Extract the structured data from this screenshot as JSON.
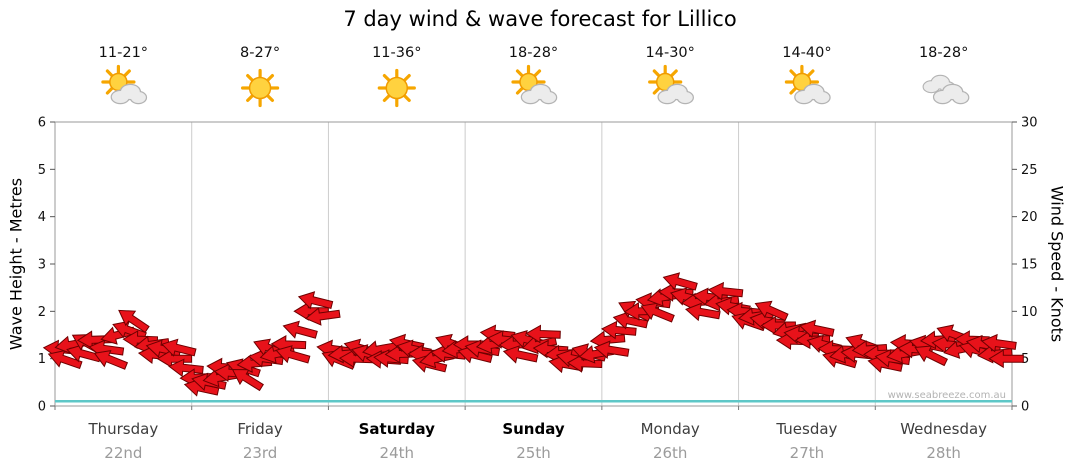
{
  "title": "7 day wind & wave forecast for Lillico",
  "watermark": "www.seabreeze.com.au",
  "chart_data": {
    "type": "scatter",
    "subtype": "wind-direction-arrows",
    "title": "7 day wind & wave forecast for Lillico",
    "left_axis": {
      "label": "Wave Height - Metres",
      "min": 0,
      "max": 6,
      "tick_step": 1
    },
    "right_axis": {
      "label": "Wind Speed - Knots",
      "min": 0,
      "max": 30,
      "tick_step": 5
    },
    "days": [
      {
        "name": "Thursday",
        "date": "22nd",
        "temp": "11-21°",
        "icon": "sun-cloud",
        "weekend": false
      },
      {
        "name": "Friday",
        "date": "23rd",
        "temp": "8-27°",
        "icon": "sunny",
        "weekend": false
      },
      {
        "name": "Saturday",
        "date": "24th",
        "temp": "11-36°",
        "icon": "sunny",
        "weekend": true
      },
      {
        "name": "Sunday",
        "date": "25th",
        "temp": "18-28°",
        "icon": "sun-cloud",
        "weekend": true
      },
      {
        "name": "Monday",
        "date": "26th",
        "temp": "14-30°",
        "icon": "sun-cloud",
        "weekend": false
      },
      {
        "name": "Tuesday",
        "date": "27th",
        "temp": "14-40°",
        "icon": "sun-cloud",
        "weekend": false
      },
      {
        "name": "Wednesday",
        "date": "28th",
        "temp": "18-28°",
        "icon": "cloudy",
        "weekend": false
      }
    ],
    "points_per_day": 12,
    "wind_knots": [
      6,
      6.5,
      5.5,
      7,
      6,
      7.5,
      8,
      7,
      6.5,
      6,
      5,
      4,
      3,
      2.5,
      3,
      3.5,
      4,
      4.5,
      5,
      5.5,
      6.5,
      8,
      10,
      9.5,
      6,
      5.5,
      5,
      5.5,
      6,
      5,
      5.5,
      6,
      5.5,
      5,
      5.5,
      6,
      6.5,
      6,
      6.5,
      7,
      6.5,
      7,
      6.5,
      6,
      5.5,
      5,
      4.5,
      5.5,
      7,
      8,
      9,
      10,
      11,
      11.5,
      12,
      11.5,
      11,
      11.5,
      11,
      10.5,
      10,
      9.5,
      9,
      8.5,
      8,
      7.5,
      7,
      6.5,
      6,
      5.5,
      5.5,
      6,
      5.5,
      5,
      5.5,
      6,
      6.5,
      7,
      6.5,
      6,
      7,
      6.5,
      5.5,
      5
    ],
    "wind_dir_deg": [
      185,
      170,
      195,
      178,
      188,
      165,
      200,
      182,
      172,
      192,
      180,
      186,
      178,
      192,
      170,
      185,
      198,
      175,
      188,
      168,
      182,
      195,
      180,
      172,
      188,
      175,
      182,
      195,
      170,
      185,
      178,
      192,
      180,
      168,
      186,
      174,
      180,
      190,
      172,
      186,
      178,
      195,
      168,
      184,
      176,
      192,
      182,
      170,
      175,
      185,
      192,
      178,
      188,
      170,
      182,
      194,
      176,
      186,
      172,
      190,
      185,
      172,
      190,
      180,
      168,
      188,
      178,
      194,
      182,
      170,
      186,
      176,
      178,
      188,
      170,
      184,
      192,
      176,
      186,
      168,
      182,
      190,
      174,
      180
    ],
    "band_jitter_kn": 1.1,
    "wave_height_m": {
      "constant": 0.1
    },
    "colors": {
      "arrow": "#e8121a",
      "arrow_outline": "#6e0000",
      "wave_line": "#5ec7c7",
      "grid": "#cccccc",
      "axis": "#9a9a9a",
      "sun": "#ffd23f",
      "sun_ray": "#f6a600",
      "cloud": "#ececec",
      "cloud_outline": "#b3b3b3"
    }
  }
}
